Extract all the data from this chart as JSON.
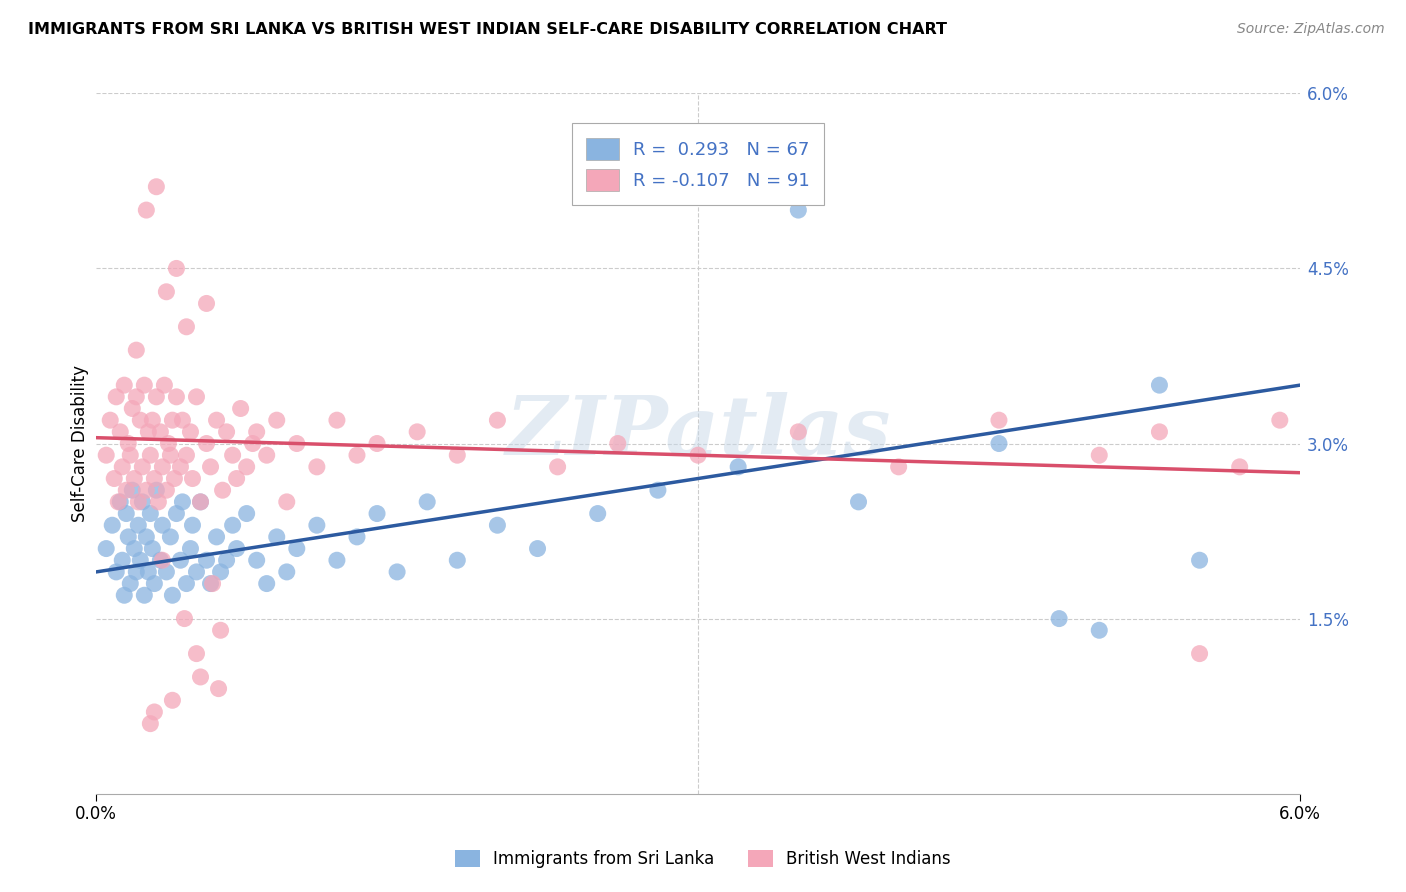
{
  "title": "IMMIGRANTS FROM SRI LANKA VS BRITISH WEST INDIAN SELF-CARE DISABILITY CORRELATION CHART",
  "source": "Source: ZipAtlas.com",
  "ylabel": "Self-Care Disability",
  "xlim": [
    0.0,
    6.0
  ],
  "ylim": [
    0.0,
    6.0
  ],
  "ytick_vals": [
    0.0,
    1.5,
    3.0,
    4.5,
    6.0
  ],
  "ytick_labels": [
    "",
    "1.5%",
    "3.0%",
    "4.5%",
    "6.0%"
  ],
  "xtick_vals": [
    0.0,
    6.0
  ],
  "xtick_labels": [
    "0.0%",
    "6.0%"
  ],
  "legend_r1": "R =  0.293",
  "legend_n1": "N = 67",
  "legend_r2": "R = -0.107",
  "legend_n2": "N = 91",
  "color_blue": "#8ab4e0",
  "color_pink": "#f4a7b9",
  "line_blue": "#2c5aa0",
  "line_pink": "#d94f6b",
  "watermark": "ZIPatlas",
  "legend_label1": "Immigrants from Sri Lanka",
  "legend_label2": "British West Indians",
  "grid_color": "#cccccc",
  "blue_line_start_y": 1.9,
  "blue_line_end_y": 3.5,
  "pink_line_start_y": 3.05,
  "pink_line_end_y": 2.75,
  "sl_x": [
    0.05,
    0.08,
    0.1,
    0.12,
    0.13,
    0.14,
    0.15,
    0.16,
    0.17,
    0.18,
    0.19,
    0.2,
    0.21,
    0.22,
    0.23,
    0.24,
    0.25,
    0.26,
    0.27,
    0.28,
    0.29,
    0.3,
    0.32,
    0.33,
    0.35,
    0.37,
    0.38,
    0.4,
    0.42,
    0.43,
    0.45,
    0.47,
    0.48,
    0.5,
    0.52,
    0.55,
    0.57,
    0.6,
    0.62,
    0.65,
    0.68,
    0.7,
    0.75,
    0.8,
    0.85,
    0.9,
    0.95,
    1.0,
    1.1,
    1.2,
    1.3,
    1.4,
    1.5,
    1.65,
    1.8,
    2.0,
    2.2,
    2.5,
    2.8,
    3.2,
    3.8,
    4.5,
    5.0,
    5.3,
    5.5,
    4.8,
    3.5
  ],
  "sl_y": [
    2.1,
    2.3,
    1.9,
    2.5,
    2.0,
    1.7,
    2.4,
    2.2,
    1.8,
    2.6,
    2.1,
    1.9,
    2.3,
    2.0,
    2.5,
    1.7,
    2.2,
    1.9,
    2.4,
    2.1,
    1.8,
    2.6,
    2.0,
    2.3,
    1.9,
    2.2,
    1.7,
    2.4,
    2.0,
    2.5,
    1.8,
    2.1,
    2.3,
    1.9,
    2.5,
    2.0,
    1.8,
    2.2,
    1.9,
    2.0,
    2.3,
    2.1,
    2.4,
    2.0,
    1.8,
    2.2,
    1.9,
    2.1,
    2.3,
    2.0,
    2.2,
    2.4,
    1.9,
    2.5,
    2.0,
    2.3,
    2.1,
    2.4,
    2.6,
    2.8,
    2.5,
    3.0,
    1.4,
    3.5,
    2.0,
    1.5,
    5.0
  ],
  "bwi_x": [
    0.05,
    0.07,
    0.09,
    0.1,
    0.11,
    0.12,
    0.13,
    0.14,
    0.15,
    0.16,
    0.17,
    0.18,
    0.19,
    0.2,
    0.21,
    0.22,
    0.23,
    0.24,
    0.25,
    0.26,
    0.27,
    0.28,
    0.29,
    0.3,
    0.31,
    0.32,
    0.33,
    0.34,
    0.35,
    0.36,
    0.37,
    0.38,
    0.39,
    0.4,
    0.42,
    0.43,
    0.45,
    0.47,
    0.48,
    0.5,
    0.52,
    0.55,
    0.57,
    0.6,
    0.63,
    0.65,
    0.68,
    0.7,
    0.72,
    0.75,
    0.78,
    0.8,
    0.85,
    0.9,
    0.95,
    1.0,
    1.1,
    1.2,
    1.3,
    1.4,
    1.6,
    1.8,
    2.0,
    2.3,
    2.6,
    3.0,
    3.5,
    4.0,
    4.5,
    5.0,
    5.3,
    5.5,
    5.7,
    5.9,
    0.4,
    0.3,
    0.55,
    0.25,
    0.35,
    0.2,
    0.45,
    0.62,
    0.58,
    0.33,
    0.27,
    0.5,
    0.38,
    0.44,
    0.29,
    0.52,
    0.61
  ],
  "bwi_y": [
    2.9,
    3.2,
    2.7,
    3.4,
    2.5,
    3.1,
    2.8,
    3.5,
    2.6,
    3.0,
    2.9,
    3.3,
    2.7,
    3.4,
    2.5,
    3.2,
    2.8,
    3.5,
    2.6,
    3.1,
    2.9,
    3.2,
    2.7,
    3.4,
    2.5,
    3.1,
    2.8,
    3.5,
    2.6,
    3.0,
    2.9,
    3.2,
    2.7,
    3.4,
    2.8,
    3.2,
    2.9,
    3.1,
    2.7,
    3.4,
    2.5,
    3.0,
    2.8,
    3.2,
    2.6,
    3.1,
    2.9,
    2.7,
    3.3,
    2.8,
    3.0,
    3.1,
    2.9,
    3.2,
    2.5,
    3.0,
    2.8,
    3.2,
    2.9,
    3.0,
    3.1,
    2.9,
    3.2,
    2.8,
    3.0,
    2.9,
    3.1,
    2.8,
    3.2,
    2.9,
    3.1,
    1.2,
    2.8,
    3.2,
    4.5,
    5.2,
    4.2,
    5.0,
    4.3,
    3.8,
    4.0,
    1.4,
    1.8,
    2.0,
    0.6,
    1.2,
    0.8,
    1.5,
    0.7,
    1.0,
    0.9
  ]
}
